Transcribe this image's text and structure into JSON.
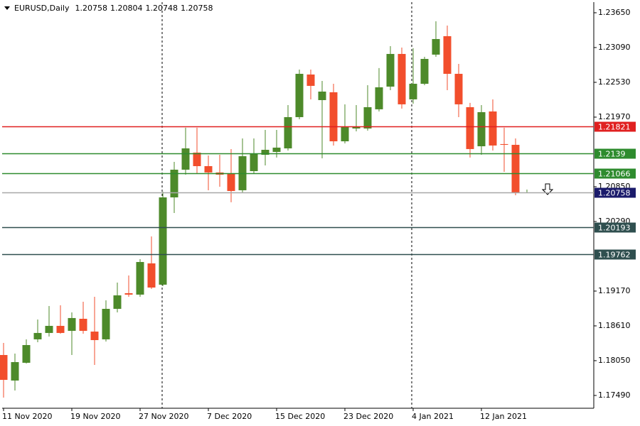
{
  "chart_data": {
    "type": "candlestick",
    "symbol": "EURUSD,Daily",
    "categories": [
      "11 Nov 2020",
      null,
      null,
      null,
      null,
      null,
      "19 Nov 2020",
      null,
      null,
      null,
      null,
      null,
      "27 Nov 2020",
      null,
      null,
      null,
      null,
      null,
      "7 Dec 2020",
      null,
      null,
      null,
      null,
      null,
      "15 Dec 2020",
      null,
      null,
      null,
      null,
      null,
      "23 Dec 2020",
      null,
      null,
      null,
      null,
      null,
      "4 Jan 2021",
      null,
      null,
      null,
      null,
      null,
      "12 Jan 2021",
      null,
      null,
      null,
      null
    ],
    "open": [
      1.18141,
      1.1773,
      1.18016,
      1.18393,
      1.18496,
      1.1861,
      1.1853,
      1.18724,
      1.18518,
      1.18393,
      1.18884,
      1.19136,
      1.19113,
      1.19616,
      1.19273,
      1.20678,
      1.21124,
      1.21399,
      1.21181,
      1.21079,
      1.21056,
      1.20793,
      1.21101,
      1.21364,
      1.2141,
      1.21467,
      1.2197,
      1.22656,
      1.22244,
      1.2237,
      1.21581,
      1.21787,
      1.21787,
      1.22096,
      1.22461,
      1.22987,
      1.22256,
      1.22507,
      1.22976,
      1.23273,
      1.22667,
      1.2213,
      1.21501,
      1.22061,
      1.21536,
      1.21524,
      1.20758
    ],
    "high": [
      1.18336,
      1.18164,
      1.18393,
      1.18713,
      1.1893,
      1.18941,
      1.18827,
      1.18998,
      1.19078,
      1.19021,
      1.19307,
      1.19421,
      1.19684,
      1.2005,
      1.2077,
      1.2125,
      1.21799,
      1.21799,
      1.21353,
      1.21364,
      1.21456,
      1.21627,
      1.21627,
      1.21764,
      1.21764,
      1.22164,
      1.22736,
      1.22736,
      1.22553,
      1.22507,
      1.22176,
      1.22164,
      1.22484,
      1.22759,
      1.23113,
      1.2309,
      1.23079,
      1.22941,
      1.23513,
      1.23444,
      1.22827,
      1.22199,
      1.22164,
      1.22256,
      1.21799,
      1.21627,
      1.20804
    ],
    "low": [
      1.17456,
      1.1757,
      1.18004,
      1.18347,
      1.18438,
      1.18484,
      1.18141,
      1.18484,
      1.17981,
      1.18358,
      1.18827,
      1.19078,
      1.19078,
      1.19204,
      1.1925,
      1.20427,
      1.21044,
      1.21056,
      1.20793,
      1.2085,
      1.20599,
      1.20747,
      1.21056,
      1.21193,
      1.21319,
      1.21433,
      1.21936,
      1.22256,
      1.21307,
      1.21513,
      1.21547,
      1.21741,
      1.21753,
      1.22061,
      1.22404,
      1.22107,
      1.22187,
      1.22484,
      1.22941,
      1.22404,
      1.2197,
      1.21319,
      1.21364,
      1.21433,
      1.2109,
      1.20713,
      1.20748
    ],
    "close": [
      1.17741,
      1.18027,
      1.18301,
      1.18496,
      1.1861,
      1.18496,
      1.18736,
      1.1853,
      1.18381,
      1.18884,
      1.19101,
      1.19113,
      1.19638,
      1.19227,
      1.20678,
      1.21124,
      1.21467,
      1.21181,
      1.21079,
      1.21044,
      1.20781,
      1.21341,
      1.21387,
      1.21444,
      1.21479,
      1.2197,
      1.22667,
      1.22473,
      1.22381,
      1.21581,
      1.21821,
      1.21821,
      1.2213,
      1.2245,
      1.22987,
      1.22176,
      1.22507,
      1.22907,
      1.23227,
      1.22667,
      1.22176,
      1.21456,
      1.2205,
      1.21513,
      1.21524,
      1.20758,
      1.20758
    ],
    "up_color": "#4d8a2a",
    "down_color": "#f24e2c",
    "ylim": [
      1.17284,
      1.23821
    ],
    "yticks": [
      {
        "value": 1.1749,
        "label": "1.17490"
      },
      {
        "value": 1.1805,
        "label": "1.18050"
      },
      {
        "value": 1.1861,
        "label": "1.18610"
      },
      {
        "value": 1.1917,
        "label": "1.19170"
      },
      {
        "value": 1.2029,
        "label": "1.20290"
      },
      {
        "value": 1.2085,
        "label": "1.20850"
      },
      {
        "value": 1.2197,
        "label": "1.21970"
      },
      {
        "value": 1.2253,
        "label": "1.22530"
      },
      {
        "value": 1.2309,
        "label": "1.23090"
      },
      {
        "value": 1.2365,
        "label": "1.23650"
      }
    ],
    "levels": [
      {
        "value": 1.21821,
        "color": "#e02020",
        "label_color": "#e02020"
      },
      {
        "value": 1.2139,
        "color": "#2e8b2e",
        "label_color": "#2e8b2e"
      },
      {
        "value": 1.21066,
        "color": "#2e8b2e",
        "label_color": "#2e8b2e"
      },
      {
        "value": 1.20758,
        "color": "#a8a8a8",
        "label_color": "#1b1b6b"
      },
      {
        "value": 1.20193,
        "color": "#2f4f4f",
        "label_color": "#2f4f4f"
      },
      {
        "value": 1.19762,
        "color": "#2f4f4f",
        "label_color": "#2f4f4f"
      }
    ]
  }
}
